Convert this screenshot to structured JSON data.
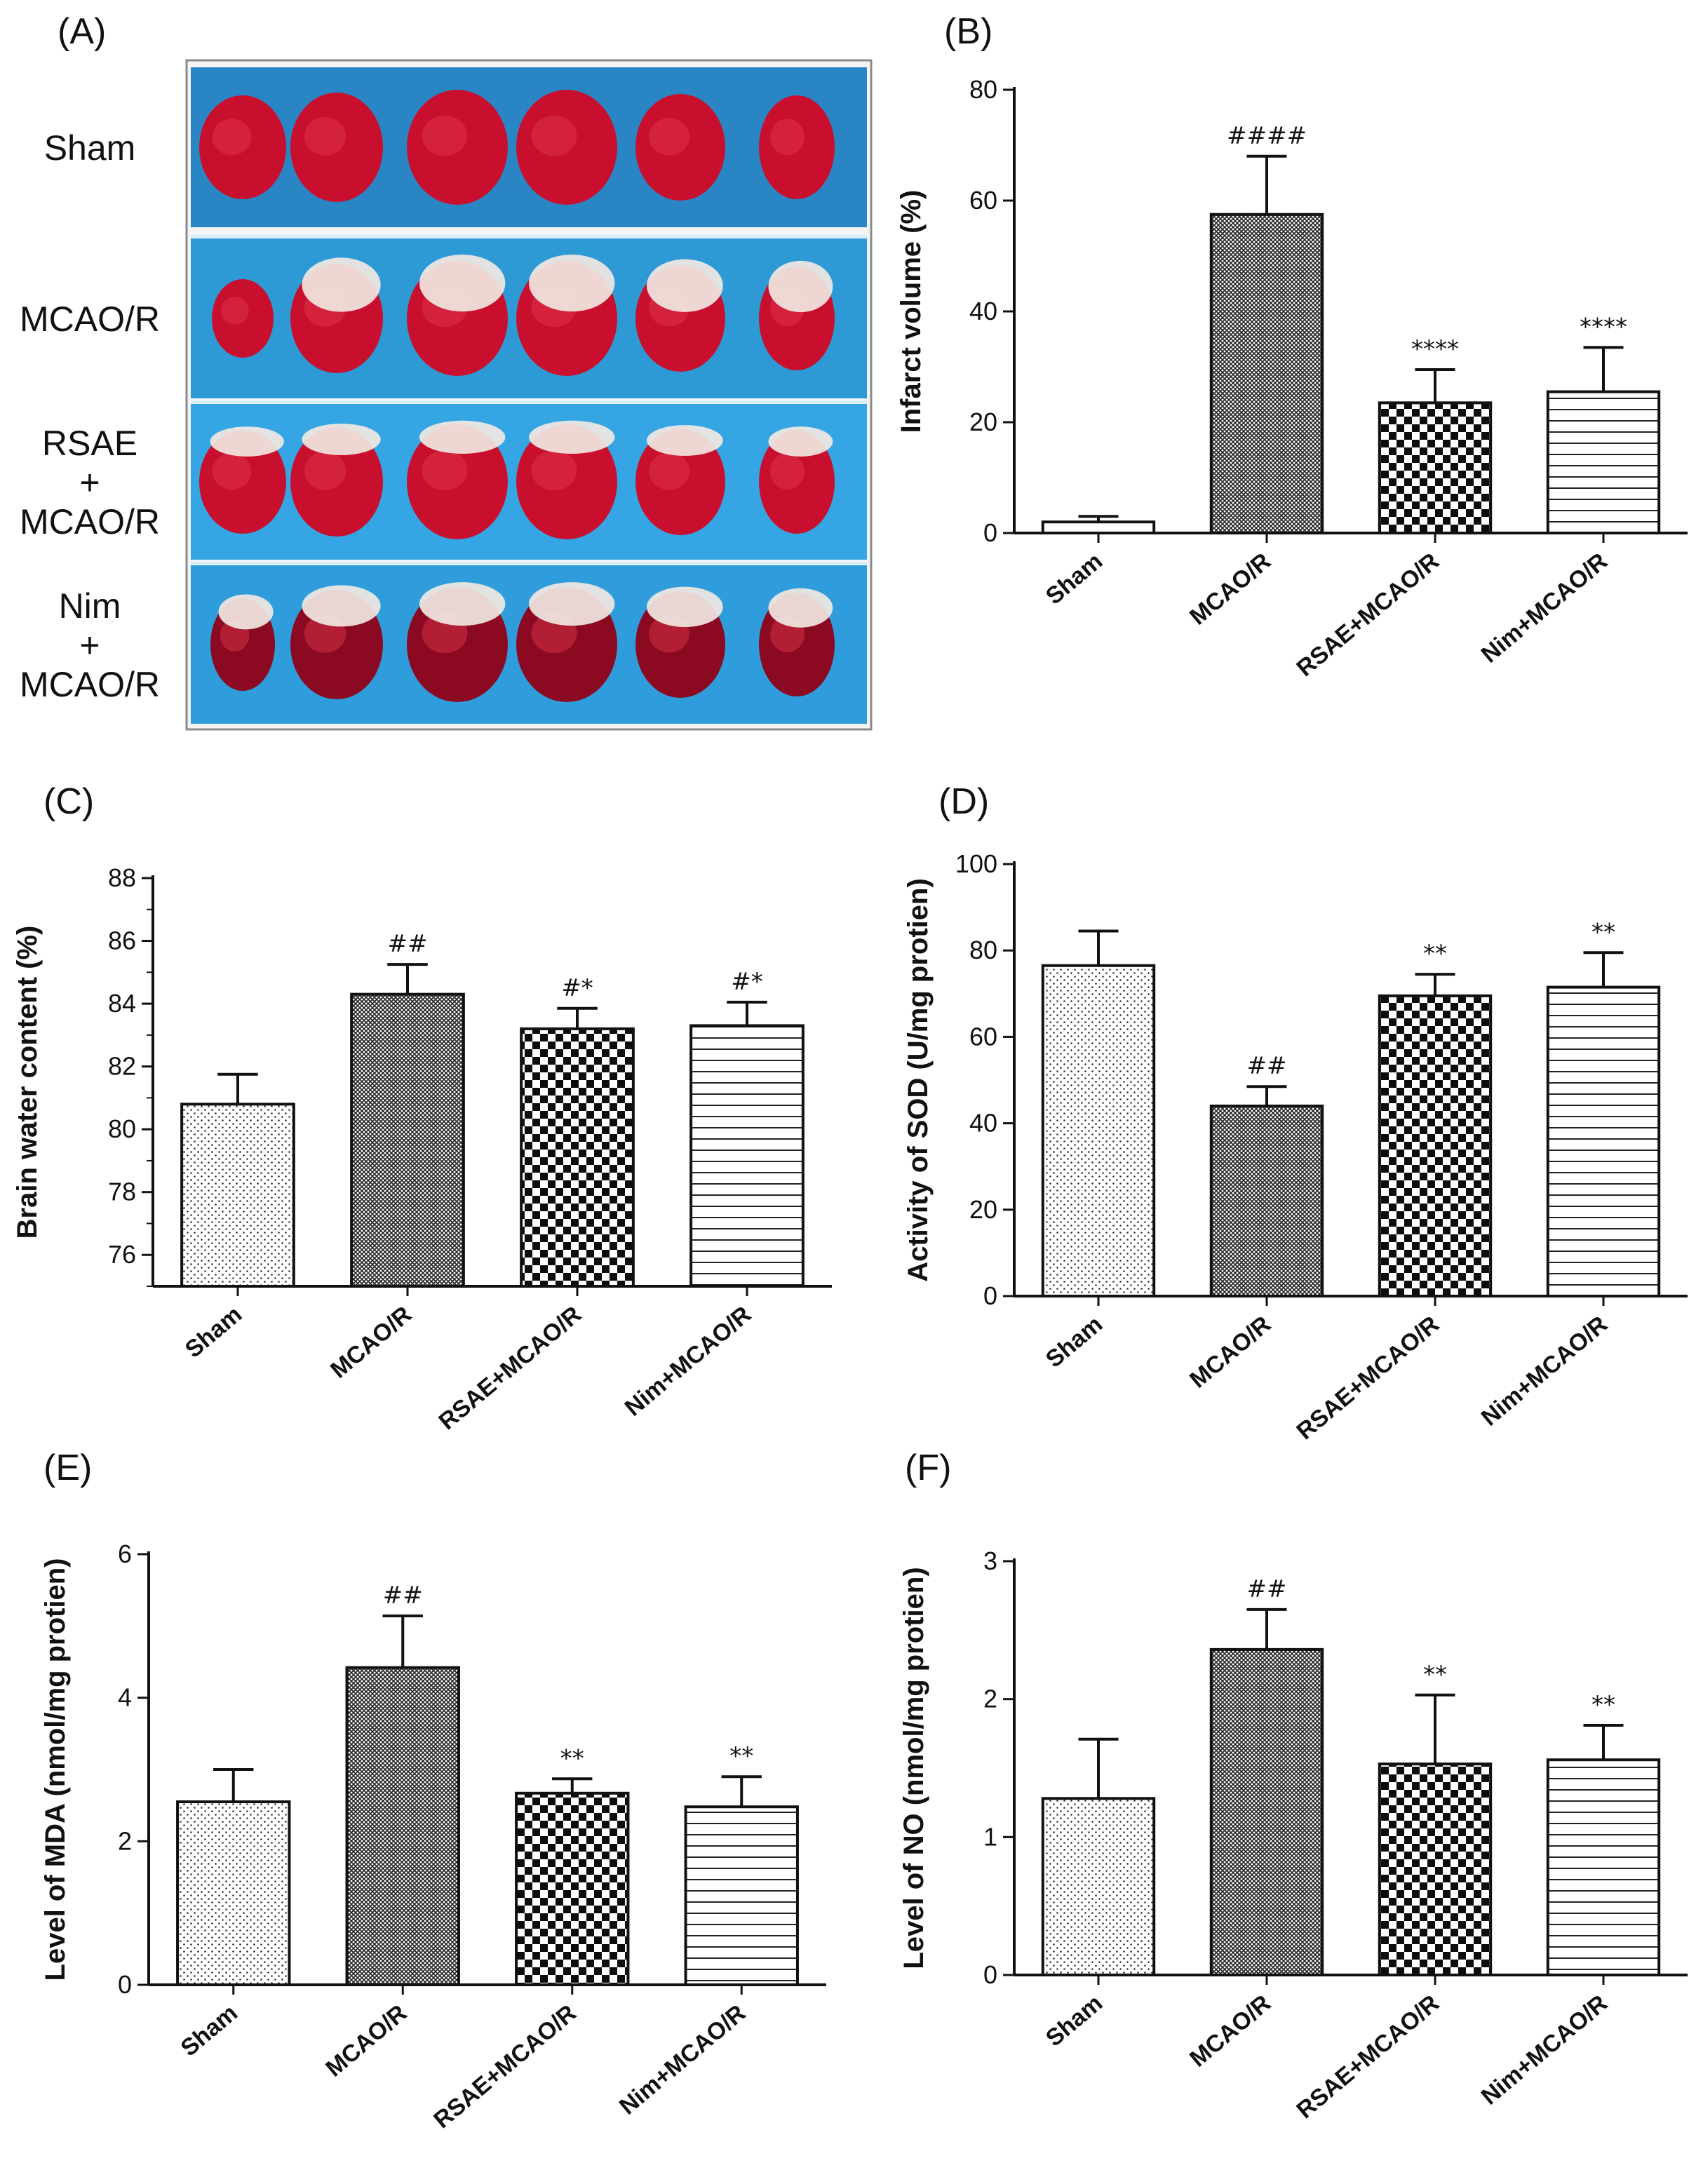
{
  "photo_panel": {
    "letter": "(A)",
    "rows": [
      {
        "lines": [
          "Sham"
        ]
      },
      {
        "lines": [
          "MCAO/R"
        ]
      },
      {
        "lines": [
          "RSAE",
          "+",
          "MCAO/R"
        ]
      },
      {
        "lines": [
          "Nim",
          "+",
          "MCAO/R"
        ]
      }
    ]
  },
  "colors": {
    "photo_background": "#2a9be0",
    "tissue_red": "#c8102e",
    "tissue_dark": "#8b0a22",
    "infarct_white": "#f1e8e2",
    "bar_outline": "#111111"
  },
  "chart_data": [
    {
      "id": "B",
      "letter": "(B)",
      "type": "bar",
      "categories": [
        "Sham",
        "MCAO/R",
        "RSAE+MCAO/R",
        "Nim+MCAO/R"
      ],
      "values": [
        2,
        57.5,
        23.5,
        25.5
      ],
      "errors": [
        1,
        10.5,
        6,
        8
      ],
      "annotations": [
        "",
        "####",
        "****",
        "****"
      ],
      "patterns": [
        "none",
        "cross",
        "checker",
        "hlines"
      ],
      "ylabel": "Infarct volume (%)",
      "ylim": [
        0,
        80
      ],
      "yticks": [
        0,
        20,
        40,
        60,
        80
      ]
    },
    {
      "id": "C",
      "letter": "(C)",
      "type": "bar",
      "categories": [
        "Sham",
        "MCAO/R",
        "RSAE+MCAO/R",
        "Nim+MCAO/R"
      ],
      "values": [
        80.8,
        84.3,
        83.2,
        83.3
      ],
      "errors": [
        0.95,
        0.95,
        0.65,
        0.75
      ],
      "annotations": [
        "",
        "##",
        "#*",
        "#*"
      ],
      "patterns": [
        "dots",
        "cross",
        "checker",
        "hlines"
      ],
      "ylabel": "Brain water content (%)",
      "ylim": [
        75,
        88
      ],
      "yticks": [
        76,
        78,
        80,
        82,
        84,
        86,
        88
      ]
    },
    {
      "id": "D",
      "letter": "(D)",
      "type": "bar",
      "categories": [
        "Sham",
        "MCAO/R",
        "RSAE+MCAO/R",
        "Nim+MCAO/R"
      ],
      "values": [
        76.5,
        44,
        69.5,
        71.5
      ],
      "errors": [
        8,
        4.5,
        5,
        8
      ],
      "annotations": [
        "",
        "##",
        "**",
        "**"
      ],
      "patterns": [
        "dots",
        "cross",
        "checker",
        "hlines"
      ],
      "ylabel": "Activity of SOD (U/mg protien)",
      "ylim": [
        0,
        100
      ],
      "yticks": [
        0,
        20,
        40,
        60,
        80,
        100
      ]
    },
    {
      "id": "E",
      "letter": "(E)",
      "type": "bar",
      "categories": [
        "Sham",
        "MCAO/R",
        "RSAE+MCAO/R",
        "Nim+MCAO/R"
      ],
      "values": [
        2.55,
        4.42,
        2.67,
        2.48
      ],
      "errors": [
        0.45,
        0.72,
        0.2,
        0.42
      ],
      "annotations": [
        "",
        "##",
        "**",
        "**"
      ],
      "patterns": [
        "dots",
        "cross",
        "checker",
        "hlines"
      ],
      "ylabel": "Level of MDA (nmol/mg protien)",
      "ylim": [
        0,
        6
      ],
      "yticks": [
        0,
        2,
        4,
        6
      ]
    },
    {
      "id": "F",
      "letter": "(F)",
      "type": "bar",
      "categories": [
        "Sham",
        "MCAO/R",
        "RSAE+MCAO/R",
        "Nim+MCAO/R"
      ],
      "values": [
        1.28,
        2.36,
        1.53,
        1.56
      ],
      "errors": [
        0.43,
        0.29,
        0.5,
        0.25
      ],
      "annotations": [
        "",
        "##",
        "**",
        "**"
      ],
      "patterns": [
        "dots",
        "cross",
        "checker",
        "hlines"
      ],
      "ylabel": "Level of NO (nmol/mg protien)",
      "ylim": [
        0,
        3
      ],
      "yticks": [
        0,
        1,
        2,
        3
      ]
    }
  ]
}
